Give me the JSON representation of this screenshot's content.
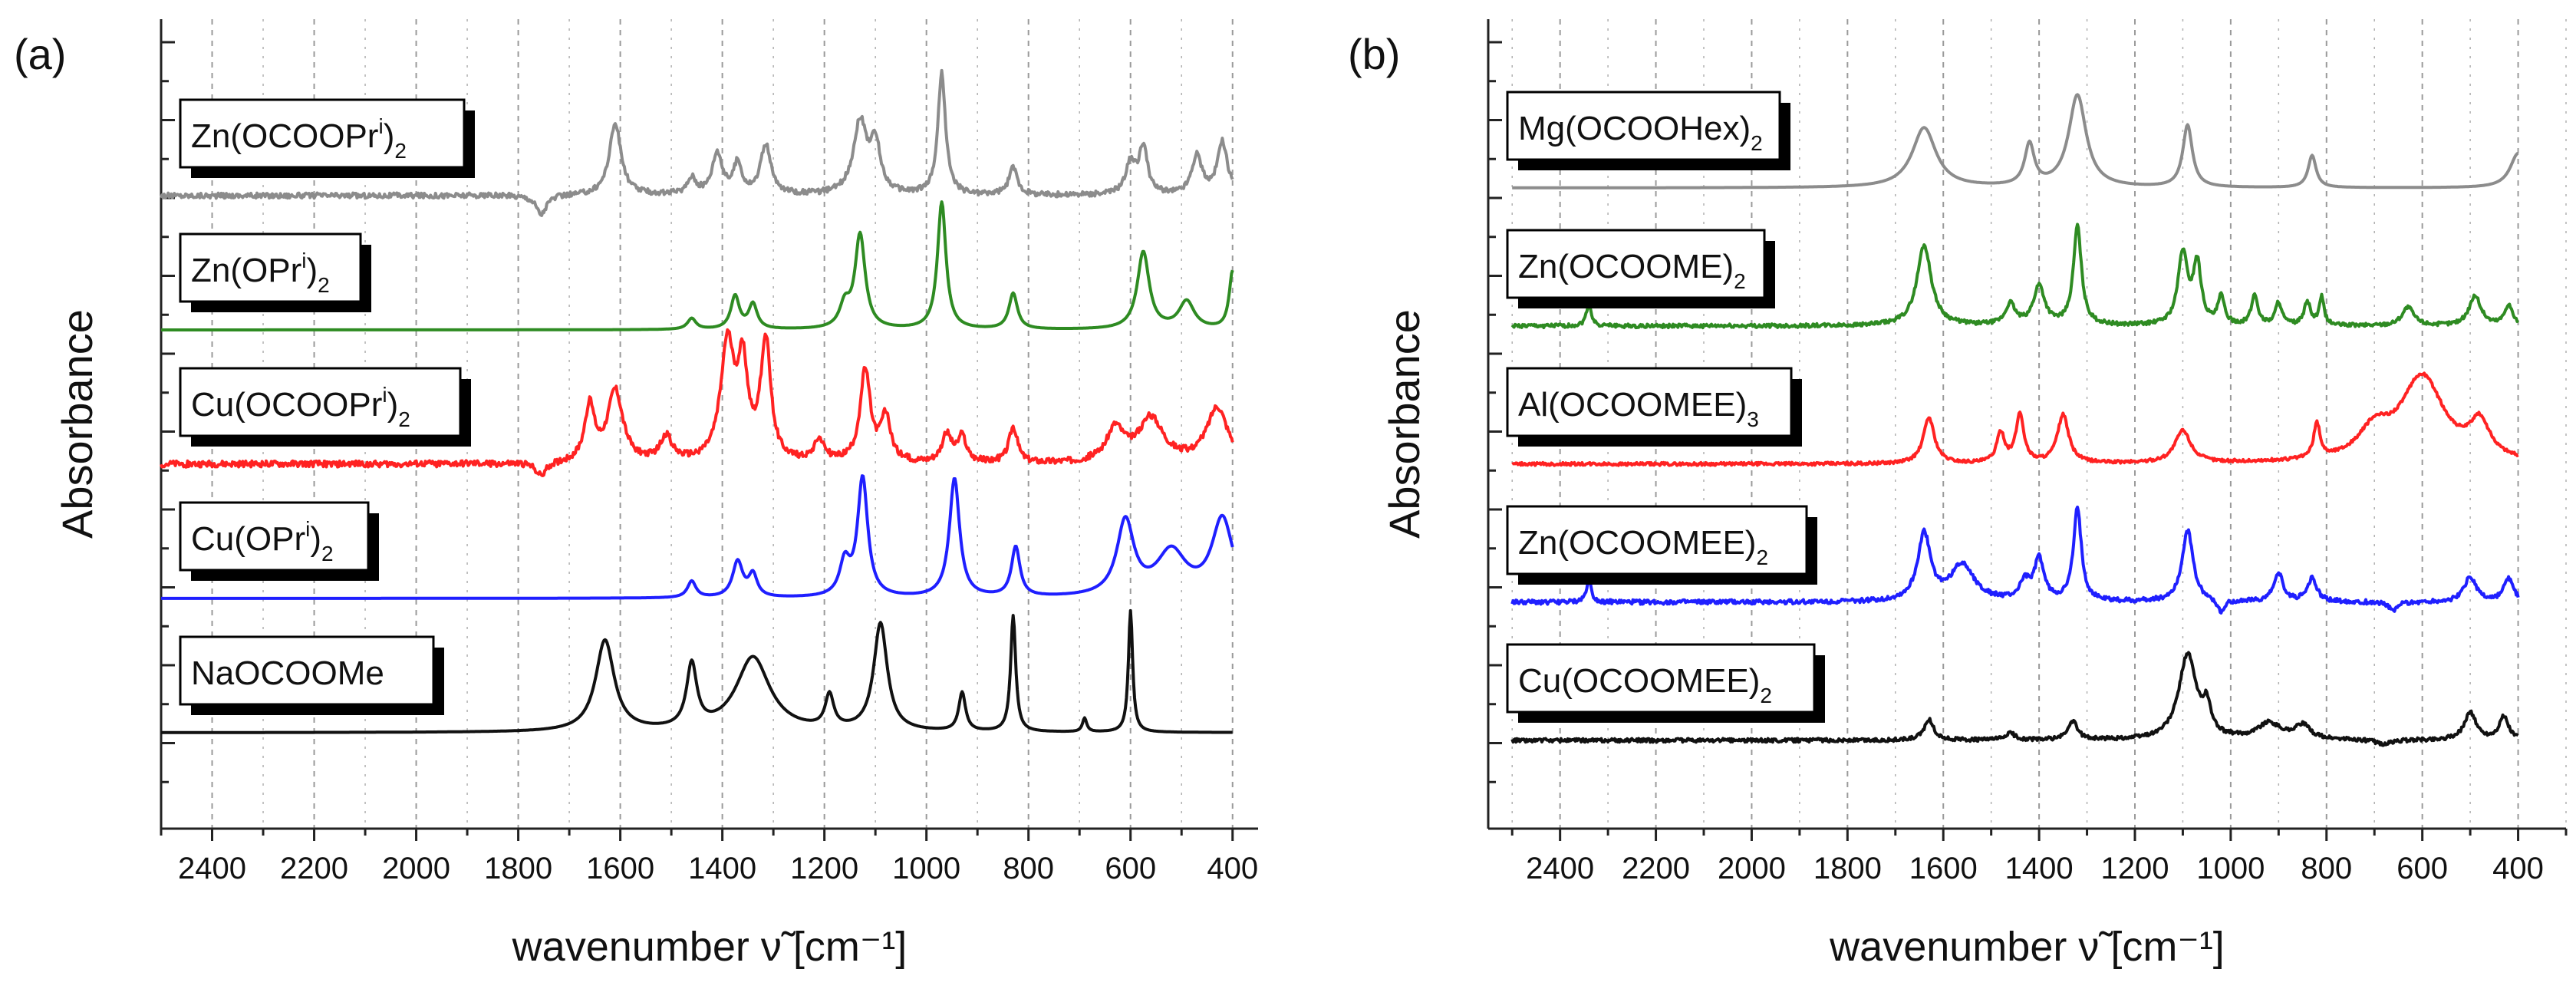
{
  "chart_data": [
    {
      "type": "line",
      "panel_label": "(a)",
      "xlabel": "wavenumber ν̃ [cm⁻¹]",
      "ylabel": "Absorbance",
      "xlim": [
        2500,
        350
      ],
      "x_ticks": [
        2400,
        2200,
        2000,
        1800,
        1600,
        1400,
        1200,
        1000,
        800,
        600,
        400
      ],
      "grid": "vertical dashed at each major tick",
      "series": [
        {
          "name": "Zn(OCOOPrⁱ)₂",
          "label_main": "Zn(OCOOPr",
          "label_sup": "i",
          "label_sub": "2",
          "label_close": ")",
          "color": "#8c8c8c",
          "x_range": [
            2500,
            400
          ],
          "noise": 0.12,
          "baseline": 0.0,
          "peaks": [
            [
              1755,
              -0.7,
              12
            ],
            [
              1610,
              2.6,
              14
            ],
            [
              1460,
              0.6,
              10
            ],
            [
              1410,
              1.5,
              12
            ],
            [
              1370,
              1.1,
              10
            ],
            [
              1315,
              1.8,
              12
            ],
            [
              1130,
              2.6,
              16
            ],
            [
              1100,
              1.7,
              12
            ],
            [
              970,
              4.4,
              9
            ],
            [
              830,
              1.0,
              10
            ],
            [
              600,
              1.1,
              12
            ],
            [
              575,
              1.7,
              10
            ],
            [
              470,
              1.4,
              12
            ],
            [
              420,
              1.9,
              12
            ]
          ]
        },
        {
          "name": "Zn(OPrⁱ)₂",
          "label_main": "Zn(OPr",
          "label_sup": "i",
          "label_sub": "2",
          "label_close": ")",
          "color": "#2e8b22",
          "x_range": [
            2500,
            400
          ],
          "noise": 0.0,
          "baseline": 0.0,
          "peaks": [
            [
              1460,
              0.4,
              10
            ],
            [
              1375,
              1.2,
              10
            ],
            [
              1340,
              0.9,
              10
            ],
            [
              1160,
              0.8,
              12
            ],
            [
              1130,
              3.4,
              12
            ],
            [
              970,
              4.6,
              10
            ],
            [
              830,
              1.3,
              10
            ],
            [
              575,
              2.8,
              14
            ],
            [
              490,
              1.0,
              18
            ],
            [
              400,
              2.1,
              8
            ]
          ]
        },
        {
          "name": "Cu(OCOOPrⁱ)₂",
          "label_main": "Cu(OCOOPr",
          "label_sup": "i",
          "label_sub": "2",
          "label_close": ")",
          "color": "#ff2222",
          "x_range": [
            2500,
            400
          ],
          "noise": 0.14,
          "baseline": 0.0,
          "peaks": [
            [
              1755,
              -0.5,
              12
            ],
            [
              1660,
              2.0,
              12
            ],
            [
              1610,
              2.6,
              18
            ],
            [
              1510,
              0.9,
              14
            ],
            [
              1390,
              4.2,
              16
            ],
            [
              1360,
              3.2,
              12
            ],
            [
              1315,
              4.3,
              12
            ],
            [
              1210,
              0.8,
              12
            ],
            [
              1120,
              3.3,
              12
            ],
            [
              1080,
              1.6,
              12
            ],
            [
              960,
              1.0,
              12
            ],
            [
              930,
              0.9,
              10
            ],
            [
              830,
              1.3,
              10
            ],
            [
              630,
              1.2,
              20
            ],
            [
              560,
              1.6,
              30
            ],
            [
              430,
              2.0,
              25
            ]
          ]
        },
        {
          "name": "Cu(OPrⁱ)₂",
          "label_main": "Cu(OPr",
          "label_sup": "i",
          "label_sub": "2",
          "label_close": ")",
          "color": "#1f1fff",
          "x_range": [
            2500,
            400
          ],
          "noise": 0.0,
          "baseline": 0.0,
          "peaks": [
            [
              1460,
              0.6,
              10
            ],
            [
              1370,
              1.3,
              12
            ],
            [
              1340,
              0.8,
              10
            ],
            [
              1160,
              1.2,
              12
            ],
            [
              1125,
              4.3,
              12
            ],
            [
              945,
              4.3,
              12
            ],
            [
              825,
              1.8,
              10
            ],
            [
              610,
              2.7,
              20
            ],
            [
              520,
              1.6,
              35
            ],
            [
              420,
              2.8,
              25
            ]
          ]
        },
        {
          "name": "NaOCOOMe",
          "label_main": "NaOCOOMe",
          "label_sup": "",
          "label_sub": "",
          "label_close": "",
          "color": "#111111",
          "x_range": [
            2500,
            400
          ],
          "noise": 0.0,
          "baseline": 0.0,
          "peaks": [
            [
              1630,
              3.3,
              22
            ],
            [
              1460,
              2.3,
              12
            ],
            [
              1340,
              2.7,
              40
            ],
            [
              1190,
              1.2,
              10
            ],
            [
              1090,
              3.9,
              16
            ],
            [
              930,
              1.4,
              8
            ],
            [
              830,
              4.2,
              6
            ],
            [
              690,
              0.5,
              5
            ],
            [
              600,
              4.4,
              5
            ]
          ]
        }
      ]
    },
    {
      "type": "line",
      "panel_label": "(b)",
      "xlabel": "wavenumber ν̃ [cm⁻¹]",
      "ylabel": "Absorbance",
      "xlim": [
        2550,
        300
      ],
      "x_ticks": [
        2400,
        2200,
        2000,
        1800,
        1600,
        1400,
        1200,
        1000,
        800,
        600,
        400
      ],
      "grid": "vertical dashed at each major tick",
      "series": [
        {
          "name": "Mg(OCOOHex)₂",
          "label_main": "Mg(OCOOHex)",
          "label_sup": "",
          "label_sub": "2",
          "label_close": "",
          "color": "#8c8c8c",
          "x_range": [
            2500,
            400
          ],
          "noise": 0.0,
          "baseline": 0.0,
          "peaks": [
            [
              1640,
              2.6,
              30
            ],
            [
              1420,
              1.8,
              12
            ],
            [
              1320,
              4.0,
              22
            ],
            [
              1090,
              2.7,
              12
            ],
            [
              830,
              1.4,
              10
            ],
            [
              400,
              1.5,
              20
            ]
          ]
        },
        {
          "name": "Zn(OCOOME)₂",
          "label_main": "Zn(OCOOME)",
          "label_sup": "",
          "label_sub": "2",
          "label_close": "",
          "color": "#2e8b22",
          "x_range": [
            2500,
            400
          ],
          "noise": 0.1,
          "baseline": 0.0,
          "peaks": [
            [
              2340,
              1.0,
              6
            ],
            [
              1640,
              3.5,
              18
            ],
            [
              1460,
              0.9,
              12
            ],
            [
              1400,
              1.7,
              14
            ],
            [
              1320,
              4.3,
              10
            ],
            [
              1100,
              3.1,
              12
            ],
            [
              1070,
              2.6,
              10
            ],
            [
              1020,
              1.2,
              8
            ],
            [
              950,
              1.3,
              8
            ],
            [
              900,
              1.0,
              8
            ],
            [
              840,
              1.0,
              8
            ],
            [
              810,
              1.2,
              6
            ],
            [
              630,
              0.8,
              15
            ],
            [
              490,
              1.3,
              15
            ],
            [
              420,
              0.9,
              10
            ]
          ]
        },
        {
          "name": "Al(OCOOMEE)₃",
          "label_main": "Al(OCOOMEE)",
          "label_sup": "",
          "label_sub": "3",
          "label_close": "",
          "color": "#ff2222",
          "x_range": [
            2500,
            400
          ],
          "noise": 0.08,
          "baseline": 0.0,
          "peaks": [
            [
              1630,
              2.0,
              14
            ],
            [
              1480,
              1.3,
              10
            ],
            [
              1440,
              2.1,
              10
            ],
            [
              1350,
              2.1,
              14
            ],
            [
              1100,
              1.4,
              20
            ],
            [
              820,
              1.5,
              8
            ],
            [
              700,
              1.2,
              40
            ],
            [
              600,
              3.7,
              55
            ],
            [
              480,
              1.5,
              25
            ]
          ]
        },
        {
          "name": "Zn(OCOOMEE)₂",
          "label_main": "Zn(OCOOMEE)",
          "label_sup": "",
          "label_sub": "2",
          "label_close": "",
          "color": "#1f1fff",
          "x_range": [
            2500,
            400
          ],
          "noise": 0.12,
          "baseline": 0.0,
          "peaks": [
            [
              2340,
              1.0,
              6
            ],
            [
              1640,
              2.9,
              16
            ],
            [
              1560,
              1.6,
              30
            ],
            [
              1430,
              0.8,
              12
            ],
            [
              1400,
              1.8,
              12
            ],
            [
              1320,
              4.0,
              10
            ],
            [
              1090,
              3.1,
              14
            ],
            [
              1020,
              -0.6,
              8
            ],
            [
              900,
              1.2,
              12
            ],
            [
              830,
              1.0,
              12
            ],
            [
              660,
              -0.4,
              10
            ],
            [
              500,
              1.1,
              15
            ],
            [
              420,
              1.0,
              12
            ]
          ]
        },
        {
          "name": "Cu(OCOOMEE)₂",
          "label_main": "Cu(OCOOMEE)",
          "label_sup": "",
          "label_sub": "2",
          "label_close": "",
          "color": "#111111",
          "x_range": [
            2500,
            400
          ],
          "noise": 0.1,
          "baseline": 0.0,
          "peaks": [
            [
              1630,
              0.9,
              12
            ],
            [
              1460,
              0.3,
              12
            ],
            [
              1330,
              0.8,
              12
            ],
            [
              1090,
              3.7,
              22
            ],
            [
              1050,
              1.2,
              10
            ],
            [
              920,
              0.7,
              30
            ],
            [
              850,
              0.6,
              20
            ],
            [
              680,
              -0.2,
              20
            ],
            [
              500,
              1.2,
              15
            ],
            [
              430,
              1.0,
              12
            ]
          ]
        }
      ]
    }
  ]
}
